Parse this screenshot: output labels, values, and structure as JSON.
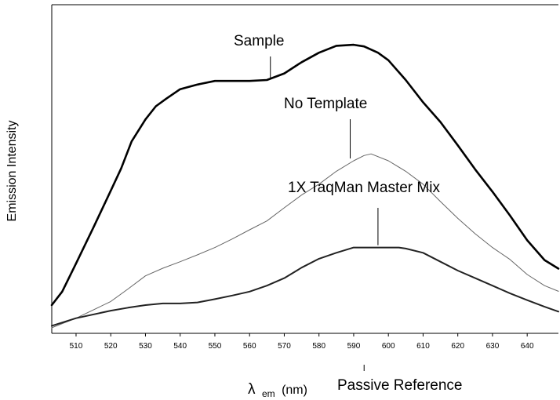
{
  "chart_data": {
    "type": "line",
    "xlabel": "λ em (nm)",
    "xlabel_symbol": "λ",
    "xlabel_subscript": "em",
    "xlabel_unit": "(nm)",
    "ylabel": "Emission Intensity",
    "xlim": [
      503,
      649
    ],
    "ylim": [
      0,
      100
    ],
    "x_ticks": [
      510,
      520,
      530,
      540,
      550,
      560,
      570,
      580,
      590,
      600,
      610,
      620,
      630,
      640
    ],
    "grid": false,
    "series": [
      {
        "name": "Sample",
        "color": "#000000",
        "x": [
          503,
          506,
          510,
          515,
          520,
          523,
          526,
          530,
          533,
          536,
          540,
          545,
          550,
          555,
          560,
          565,
          570,
          575,
          580,
          585,
          590,
          593,
          597,
          600,
          605,
          610,
          615,
          620,
          625,
          630,
          635,
          640,
          645,
          649
        ],
        "y": [
          8.6,
          12.7,
          21.3,
          32.2,
          43.4,
          50.2,
          58.4,
          65.1,
          69.1,
          71.4,
          74.3,
          75.7,
          76.8,
          76.8,
          76.8,
          77.1,
          79.1,
          82.5,
          85.4,
          87.5,
          87.8,
          87.3,
          85.4,
          83.1,
          77.1,
          70.3,
          64.3,
          57.2,
          49.9,
          43.1,
          35.9,
          28.3,
          22.3,
          19.7
        ]
      },
      {
        "name": "No Template",
        "color": "#666666",
        "x": [
          503,
          510,
          520,
          525,
          530,
          535,
          540,
          545,
          550,
          555,
          560,
          565,
          570,
          575,
          580,
          585,
          590,
          593,
          595,
          600,
          605,
          610,
          615,
          620,
          625,
          630,
          635,
          640,
          645,
          649
        ],
        "y": [
          1.7,
          4.6,
          9.7,
          13.5,
          17.5,
          19.8,
          21.8,
          23.9,
          26.1,
          28.7,
          31.5,
          34.2,
          38.2,
          42.1,
          45.4,
          49.3,
          52.5,
          54.1,
          54.6,
          52.5,
          49.3,
          45.4,
          40.1,
          35.0,
          30.3,
          26.1,
          22.5,
          17.9,
          14.5,
          12.8
        ]
      },
      {
        "name": "1X TaqMan Master Mix",
        "color": "#222222",
        "x": [
          503,
          510,
          520,
          525,
          530,
          535,
          540,
          545,
          550,
          555,
          560,
          565,
          570,
          575,
          580,
          585,
          590,
          595,
          600,
          603,
          605,
          610,
          615,
          620,
          625,
          630,
          635,
          640,
          645,
          649
        ],
        "y": [
          2.3,
          4.6,
          6.9,
          7.8,
          8.6,
          9.1,
          9.1,
          9.4,
          10.4,
          11.5,
          12.7,
          14.5,
          16.8,
          20.0,
          22.7,
          24.5,
          26.1,
          26.1,
          26.1,
          26.1,
          25.8,
          24.5,
          21.8,
          19.1,
          16.8,
          14.5,
          12.2,
          10.1,
          8.1,
          6.6
        ]
      }
    ],
    "annotations": [
      {
        "text": "Sample",
        "x": 566,
        "y": 77.1,
        "series": "Sample"
      },
      {
        "text": "No Template",
        "x": 589,
        "y": 52.5,
        "series": "No Template"
      },
      {
        "text": "1X TaqMan Master Mix",
        "x": 597,
        "y": 26.1,
        "series": "1X TaqMan Master Mix"
      },
      {
        "text": "Passive Reference",
        "x": 593,
        "y": null,
        "series": ""
      }
    ]
  }
}
